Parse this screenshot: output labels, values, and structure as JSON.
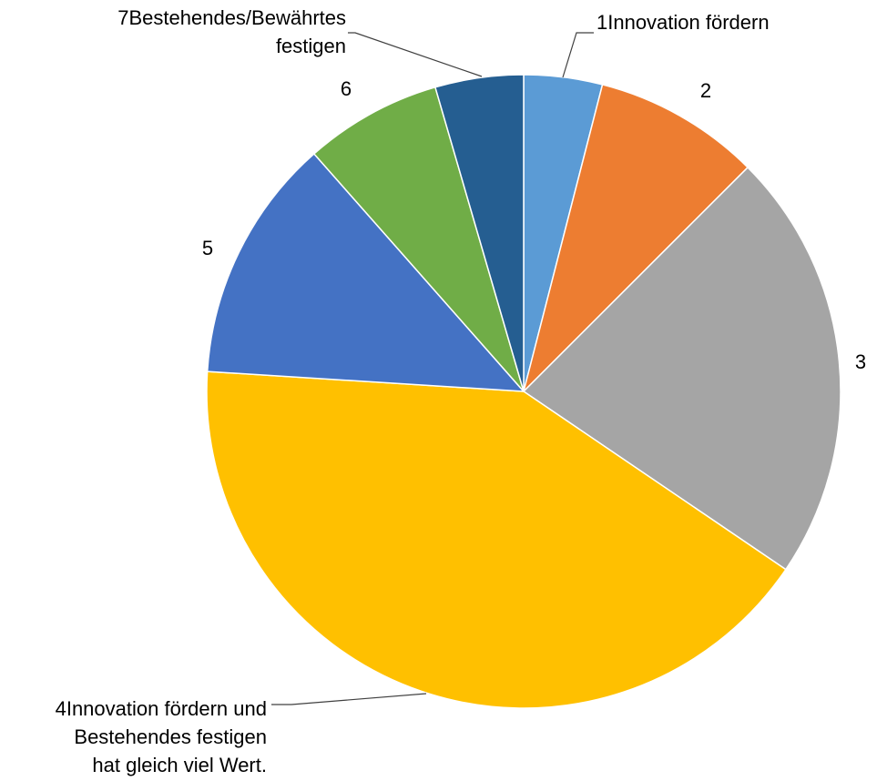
{
  "chart_data": {
    "type": "pie",
    "start_angle_deg": 0,
    "direction": "clockwise",
    "slices": [
      {
        "label": "1",
        "label_lines": [
          "1Innovation fördern"
        ],
        "value": 4.0,
        "color": "#5B9BD5"
      },
      {
        "label": "2",
        "label_lines": [
          "2"
        ],
        "value": 8.5,
        "color": "#ED7D31"
      },
      {
        "label": "3",
        "label_lines": [
          "3"
        ],
        "value": 22.0,
        "color": "#A5A5A5"
      },
      {
        "label": "4",
        "label_lines": [
          "4Innovation fördern und",
          "Bestehendes festigen",
          "hat gleich viel Wert."
        ],
        "value": 41.5,
        "color": "#FFC000"
      },
      {
        "label": "5",
        "label_lines": [
          "5"
        ],
        "value": 12.5,
        "color": "#4472C4"
      },
      {
        "label": "6",
        "label_lines": [
          "6"
        ],
        "value": 7.0,
        "color": "#70AD47"
      },
      {
        "label": "7",
        "label_lines": [
          "7Bestehendes/Bewährtes",
          "festigen"
        ],
        "value": 4.5,
        "color": "#255E91"
      }
    ]
  }
}
